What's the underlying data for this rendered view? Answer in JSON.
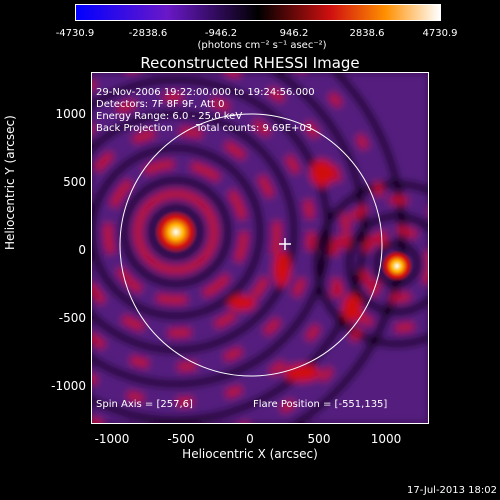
{
  "colorbar": {
    "ticks": [
      "-4730.9",
      "-2838.6",
      "-946.2",
      "946.2",
      "2838.6",
      "4730.9"
    ],
    "units": "(photons cm⁻² s⁻¹ asec⁻²)"
  },
  "title": "Reconstructed RHESSI Image",
  "annotations": {
    "time_range": "29-Nov-2006 19:22:00.000 to 19:24:56.000",
    "detectors": "Detectors: 7F 8F 9F, Att 0",
    "energy": "Energy Range: 6.0 - 25.0 keV",
    "method": "Back Projection",
    "counts": "Total counts: 9.69E+03",
    "spin_axis": "Spin Axis = [257,6]",
    "flare_position": "Flare Position = [-551,135]"
  },
  "axes": {
    "xlabel": "Heliocentric X (arcsec)",
    "ylabel": "Heliocentric Y (arcsec)",
    "xticks": [
      "-1000",
      "-500",
      "0",
      "500",
      "1000"
    ],
    "yticks": [
      "1000",
      "500",
      "0",
      "-500",
      "-1000"
    ]
  },
  "timestamp": "17-Jul-2013 18:02",
  "colors": {
    "low": "#0000ff",
    "mid": "#000000",
    "high": "#ffffff",
    "red": "#d01010",
    "purple": "#5a1f8a"
  }
}
